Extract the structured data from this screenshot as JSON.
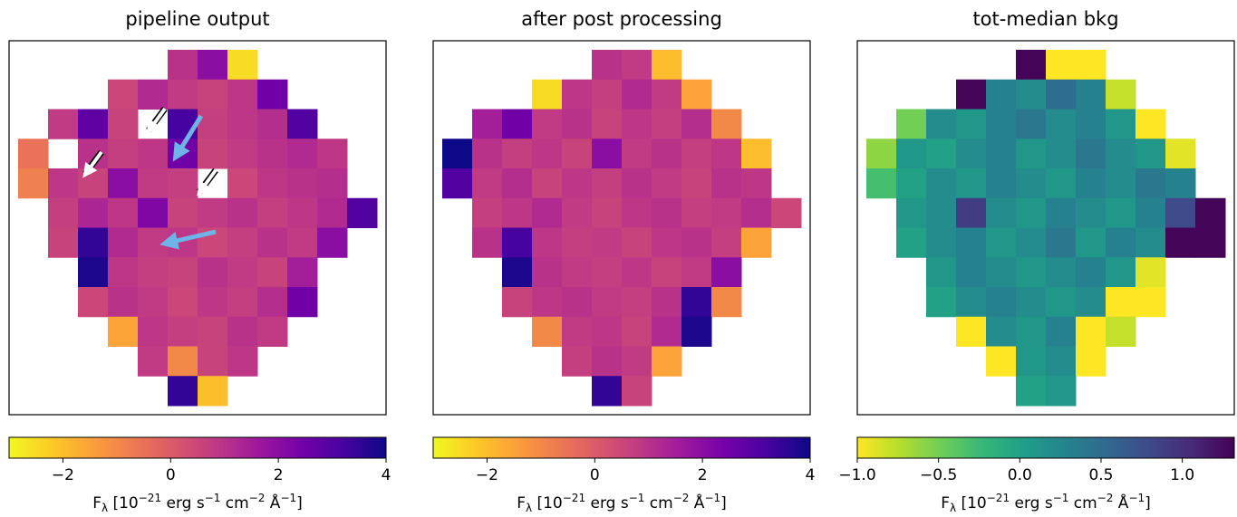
{
  "chart_data": [
    {
      "type": "heatmap",
      "title": "pipeline output",
      "colormap": "plasma_r",
      "clim": [
        -3,
        4
      ],
      "cticks": [
        {
          "value": -2,
          "label": "−2"
        },
        0,
        2,
        4
      ],
      "colorbar_label": [
        "F",
        "λ",
        " [10",
        "−21",
        " erg s",
        "−1",
        " cm",
        "−2",
        " Å",
        "−1",
        "]"
      ],
      "z": [
        [
          null,
          null,
          null,
          null,
          null,
          1.0,
          2.0,
          -2.5,
          null,
          null,
          null,
          null
        ],
        [
          null,
          null,
          null,
          0.5,
          1.2,
          0.8,
          0.6,
          0.9,
          2.5,
          null,
          null,
          null
        ],
        [
          null,
          0.8,
          2.8,
          0.6,
          null,
          3.2,
          0.7,
          0.9,
          1.1,
          3.0,
          null,
          null
        ],
        [
          -0.5,
          null,
          1.0,
          0.7,
          0.9,
          2.5,
          0.6,
          0.8,
          1.0,
          1.2,
          0.9,
          null
        ],
        [
          -0.8,
          0.9,
          0.6,
          2.0,
          0.8,
          0.7,
          null,
          0.5,
          0.9,
          1.0,
          1.1,
          null
        ],
        [
          null,
          0.7,
          1.3,
          0.9,
          2.2,
          0.6,
          0.8,
          1.0,
          0.7,
          0.9,
          1.2,
          3.0
        ],
        [
          null,
          0.6,
          3.5,
          1.2,
          0.8,
          0.9,
          0.5,
          0.7,
          1.0,
          0.8,
          2.0,
          null
        ],
        [
          null,
          null,
          3.8,
          0.9,
          0.7,
          0.6,
          1.0,
          0.8,
          0.6,
          1.5,
          null,
          null
        ],
        [
          null,
          null,
          0.5,
          1.0,
          0.8,
          0.5,
          0.9,
          0.7,
          1.1,
          2.5,
          null,
          null
        ],
        [
          null,
          null,
          null,
          -1.5,
          0.9,
          0.7,
          0.6,
          1.0,
          0.8,
          null,
          null,
          null
        ],
        [
          null,
          null,
          null,
          null,
          0.8,
          -1.0,
          0.6,
          0.9,
          null,
          null,
          null,
          null
        ],
        [
          null,
          null,
          null,
          null,
          null,
          3.5,
          -2.0,
          null,
          null,
          null,
          null,
          null
        ]
      ]
    },
    {
      "type": "heatmap",
      "title": "after post processing",
      "colormap": "plasma_r",
      "clim": [
        -3,
        4
      ],
      "cticks": [
        {
          "value": -2,
          "label": "−2"
        },
        0,
        2,
        4
      ],
      "colorbar_label": [
        "F",
        "λ",
        " [10",
        "−21",
        " erg s",
        "−1",
        " cm",
        "−2",
        " Å",
        "−1",
        "]"
      ],
      "z": [
        [
          null,
          null,
          null,
          null,
          null,
          1.0,
          0.8,
          -2.0,
          null,
          null,
          null,
          null
        ],
        [
          null,
          null,
          null,
          -2.5,
          0.9,
          0.7,
          1.2,
          0.8,
          -1.5,
          null,
          null,
          null
        ],
        [
          null,
          1.5,
          2.5,
          0.8,
          1.0,
          0.6,
          0.9,
          0.7,
          1.1,
          -1.0,
          null,
          null
        ],
        [
          4.0,
          1.0,
          0.7,
          0.9,
          0.6,
          2.0,
          0.8,
          1.0,
          0.7,
          0.9,
          -2.0,
          null
        ],
        [
          3.0,
          0.8,
          1.1,
          0.6,
          0.9,
          0.7,
          1.0,
          0.8,
          0.6,
          1.0,
          0.9,
          null
        ],
        [
          null,
          0.7,
          0.9,
          1.2,
          0.8,
          0.6,
          0.9,
          1.0,
          0.7,
          0.8,
          1.1,
          0.5
        ],
        [
          null,
          1.0,
          3.2,
          0.9,
          0.7,
          0.8,
          0.6,
          0.9,
          1.0,
          0.7,
          -1.5,
          null
        ],
        [
          null,
          null,
          3.8,
          1.0,
          0.8,
          0.7,
          0.9,
          0.6,
          0.8,
          2.0,
          null,
          null
        ],
        [
          null,
          null,
          0.6,
          0.9,
          1.0,
          0.8,
          0.7,
          1.0,
          3.5,
          -1.0,
          null,
          null
        ],
        [
          null,
          null,
          null,
          -1.0,
          0.8,
          0.9,
          0.6,
          1.2,
          3.8,
          null,
          null,
          null
        ],
        [
          null,
          null,
          null,
          null,
          0.7,
          1.0,
          0.8,
          -1.5,
          null,
          null,
          null,
          null
        ],
        [
          null,
          null,
          null,
          null,
          null,
          3.5,
          0.6,
          null,
          null,
          null,
          null,
          null
        ]
      ]
    },
    {
      "type": "heatmap",
      "title": "tot-median bkg",
      "colormap": "viridis_r",
      "clim": [
        -1.0,
        1.32
      ],
      "cticks": [
        {
          "value": -1.0,
          "label": "−1.0"
        },
        {
          "value": -0.5,
          "label": "−0.5"
        },
        {
          "value": 0,
          "label": "0.0"
        },
        0.5,
        {
          "value": 1.0,
          "label": "1.0"
        }
      ],
      "colorbar_label": [
        "F",
        "λ",
        " [10",
        "−21",
        " erg s",
        "−1",
        " cm",
        "−2",
        " Å",
        "−1",
        "]"
      ],
      "z": [
        [
          null,
          null,
          null,
          null,
          null,
          1.3,
          -1.0,
          -1.0,
          null,
          null,
          null,
          null
        ],
        [
          null,
          null,
          null,
          1.3,
          0.3,
          0.2,
          0.5,
          0.3,
          -0.8,
          null,
          null,
          null
        ],
        [
          null,
          -0.5,
          0.2,
          0.1,
          0.3,
          0.4,
          0.2,
          0.3,
          0.1,
          -1.0,
          null,
          null
        ],
        [
          -0.6,
          0.1,
          0.0,
          0.2,
          0.3,
          0.1,
          0.2,
          0.4,
          0.2,
          0.1,
          -0.9,
          null
        ],
        [
          -0.3,
          0.0,
          0.2,
          0.1,
          0.3,
          0.2,
          0.1,
          0.3,
          0.2,
          0.4,
          0.3,
          null
        ],
        [
          null,
          0.1,
          0.2,
          0.9,
          0.2,
          0.1,
          0.3,
          0.2,
          0.1,
          0.3,
          0.8,
          1.3
        ],
        [
          null,
          0.0,
          0.2,
          0.3,
          0.1,
          0.2,
          0.4,
          0.1,
          0.3,
          0.2,
          1.3,
          1.3
        ],
        [
          null,
          null,
          0.1,
          0.3,
          0.2,
          0.1,
          0.2,
          0.3,
          0.1,
          -0.9,
          null,
          null
        ],
        [
          null,
          null,
          0.0,
          0.2,
          0.3,
          0.2,
          0.1,
          0.2,
          -1.0,
          -1.0,
          null,
          null
        ],
        [
          null,
          null,
          null,
          -1.0,
          0.2,
          0.1,
          0.3,
          -1.0,
          -0.8,
          null,
          null,
          null
        ],
        [
          null,
          null,
          null,
          null,
          -1.0,
          0.1,
          0.2,
          -1.0,
          null,
          null,
          null,
          null
        ],
        [
          null,
          null,
          null,
          null,
          null,
          0.0,
          0.1,
          null,
          null,
          null,
          null,
          null
        ]
      ]
    }
  ]
}
